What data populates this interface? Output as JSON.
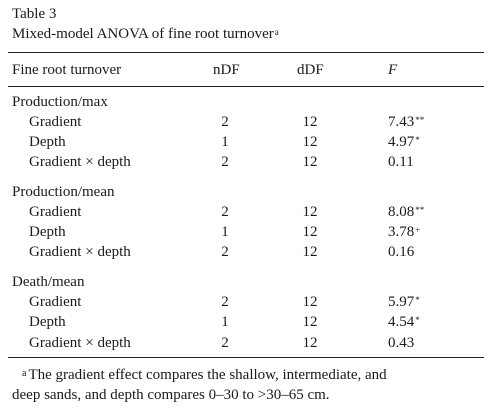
{
  "table": {
    "label": "Table 3",
    "caption": "Mixed-model ANOVA of fine root turnover",
    "caption_note_mark": "a",
    "headers": {
      "name": "Fine root turnover",
      "ndf": "nDF",
      "ddf": "dDF",
      "f": "F"
    },
    "groups": [
      {
        "title": "Production/max",
        "rows": [
          {
            "name": "Gradient",
            "ndf": "2",
            "ddf": "12",
            "f": "7.43",
            "sig": "**"
          },
          {
            "name": "Depth",
            "ndf": "1",
            "ddf": "12",
            "f": "4.97",
            "sig": "*"
          },
          {
            "name": "Gradient × depth",
            "ndf": "2",
            "ddf": "12",
            "f": "0.11",
            "sig": ""
          }
        ]
      },
      {
        "title": "Production/mean",
        "rows": [
          {
            "name": "Gradient",
            "ndf": "2",
            "ddf": "12",
            "f": "8.08",
            "sig": "**"
          },
          {
            "name": "Depth",
            "ndf": "1",
            "ddf": "12",
            "f": "3.78",
            "sig": "+"
          },
          {
            "name": "Gradient × depth",
            "ndf": "2",
            "ddf": "12",
            "f": "0.16",
            "sig": ""
          }
        ]
      },
      {
        "title": "Death/mean",
        "rows": [
          {
            "name": "Gradient",
            "ndf": "2",
            "ddf": "12",
            "f": "5.97",
            "sig": "*"
          },
          {
            "name": "Depth",
            "ndf": "1",
            "ddf": "12",
            "f": "4.54",
            "sig": "*"
          },
          {
            "name": "Gradient × depth",
            "ndf": "2",
            "ddf": "12",
            "f": "0.43",
            "sig": ""
          }
        ]
      }
    ],
    "footnote": {
      "mark": "a",
      "line1": "The gradient effect compares the shallow, intermediate, and",
      "line2": "deep sands, and depth compares 0–30 to >30–65 cm."
    }
  }
}
